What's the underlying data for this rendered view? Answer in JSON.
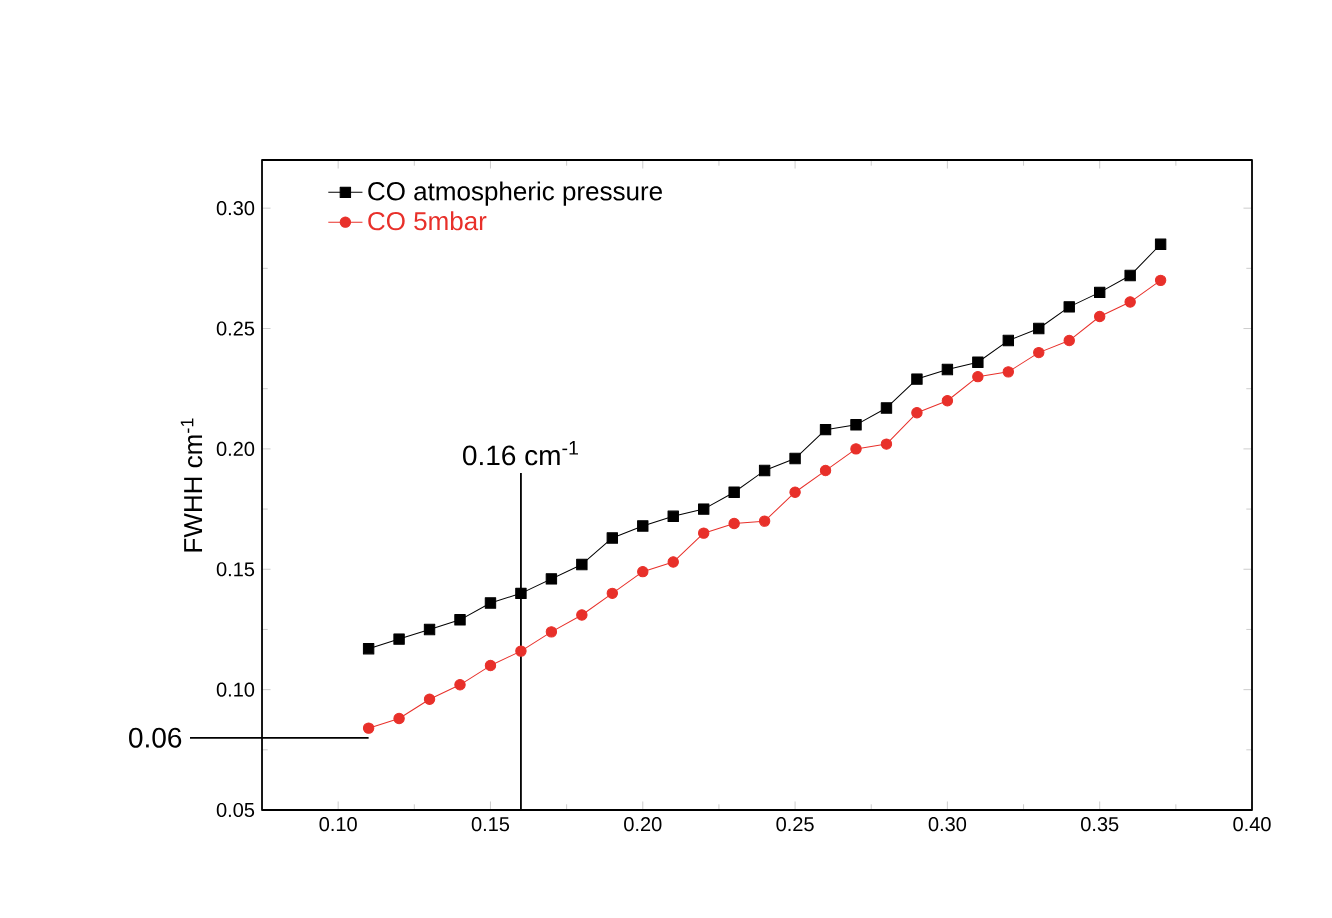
{
  "chart_data": {
    "type": "line",
    "ylabel": "FWHH cm$^{-1}$",
    "x": [
      0.11,
      0.12,
      0.13,
      0.14,
      0.15,
      0.16,
      0.17,
      0.18,
      0.19,
      0.2,
      0.21,
      0.22,
      0.23,
      0.24,
      0.25,
      0.26,
      0.27,
      0.28,
      0.29,
      0.3,
      0.31,
      0.32,
      0.33,
      0.34,
      0.35,
      0.36,
      0.37
    ],
    "series": [
      {
        "name": "CO atmospheric pressure",
        "color": "#000000",
        "marker": "square",
        "values": [
          0.117,
          0.121,
          0.125,
          0.129,
          0.136,
          0.14,
          0.146,
          0.152,
          0.163,
          0.168,
          0.172,
          0.175,
          0.182,
          0.191,
          0.196,
          0.208,
          0.21,
          0.217,
          0.229,
          0.233,
          0.236,
          0.245,
          0.25,
          0.259,
          0.265,
          0.272,
          0.285
        ]
      },
      {
        "name": "CO 5mbar",
        "color": "#e8302a",
        "marker": "circle",
        "values": [
          0.084,
          0.088,
          0.096,
          0.102,
          0.11,
          0.116,
          0.124,
          0.131,
          0.14,
          0.149,
          0.153,
          0.165,
          0.169,
          0.17,
          0.182,
          0.191,
          0.2,
          0.202,
          0.215,
          0.22,
          0.23,
          0.232,
          0.24,
          0.245,
          0.255,
          0.261,
          0.27
        ]
      }
    ],
    "xlim": [
      0.075,
      0.4
    ],
    "xticks": [
      {
        "value": 0.1,
        "label": "0.10"
      },
      {
        "value": 0.15,
        "label": "0.15"
      },
      {
        "value": 0.2,
        "label": "0.20"
      },
      {
        "value": 0.25,
        "label": "0.25"
      },
      {
        "value": 0.3,
        "label": "0.30"
      },
      {
        "value": 0.35,
        "label": "0.35"
      },
      {
        "value": 0.4,
        "label": "0.40"
      }
    ],
    "ylim": [
      0.05,
      0.32
    ],
    "yticks": [
      {
        "value": 0.05,
        "label": "0.05"
      },
      {
        "value": 0.1,
        "label": "0.10"
      },
      {
        "value": 0.15,
        "label": "0.15"
      },
      {
        "value": 0.2,
        "label": "0.20"
      },
      {
        "value": 0.25,
        "label": "0.25"
      },
      {
        "value": 0.3,
        "label": "0.30"
      }
    ],
    "ref_lines": [
      {
        "axis": "x",
        "value": 0.16,
        "label": "0.16 cm$^{-1}$",
        "color": "#000000"
      },
      {
        "axis": "y",
        "value": 0.08,
        "color": "#000000"
      }
    ],
    "annotations": [
      "0.06"
    ],
    "grid": false,
    "legend": "top left",
    "line_style": "solid"
  }
}
